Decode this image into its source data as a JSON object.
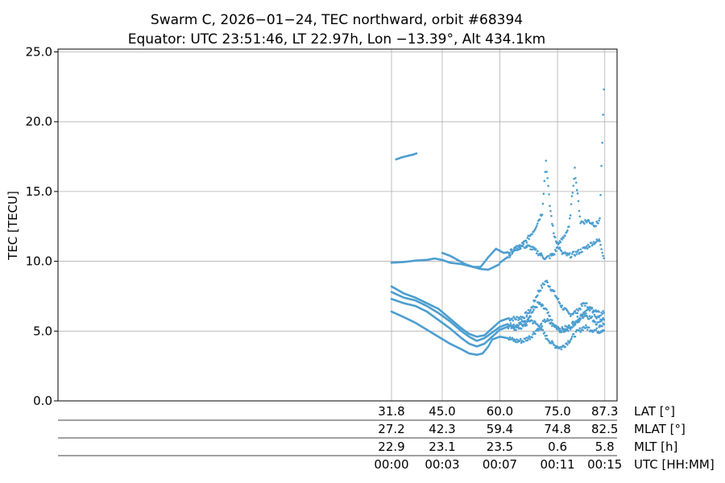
{
  "chart_data": {
    "type": "scatter",
    "title_line1": "Swarm C, 2026−01−24, TEC northward, orbit #68394",
    "title_line2": "Equator: UTC 23:51:46, LT 22.97h, Lon −13.39°, Alt 434.1km",
    "ylabel": "TEC [TECU]",
    "ylim": [
      0,
      25.2
    ],
    "yticks": [
      "0.0",
      "5.0",
      "10.0",
      "15.0",
      "20.0",
      "25.0"
    ],
    "grid": true,
    "color": "#4c9ed0",
    "x_axis_rows": [
      {
        "label": "LAT [°]",
        "ticks": [
          "31.8",
          "45.0",
          "60.0",
          "75.0",
          "87.3"
        ]
      },
      {
        "label": "MLAT [°]",
        "ticks": [
          "27.2",
          "42.3",
          "59.4",
          "74.8",
          "82.5"
        ]
      },
      {
        "label": "MLT [h]",
        "ticks": [
          "22.9",
          "23.1",
          "23.5",
          "0.6",
          "5.8"
        ]
      },
      {
        "label": "UTC [HH:MM]",
        "ticks": [
          "00:00",
          "00:03",
          "00:07",
          "00:11",
          "00:15"
        ]
      }
    ],
    "lat_ticks": [
      31.8,
      45.0,
      60.0,
      75.0,
      87.3
    ],
    "xlim_lat": [
      -55,
      90.5
    ],
    "series": [
      {
        "points": [
          [
            31.8,
            9.9
          ],
          [
            35,
            9.95
          ],
          [
            38,
            10.05
          ],
          [
            41,
            10.1
          ],
          [
            43,
            10.2
          ],
          [
            45,
            10.1
          ],
          [
            47,
            9.9
          ],
          [
            50,
            9.8
          ],
          [
            53,
            9.6
          ],
          [
            55,
            9.45
          ],
          [
            57,
            9.4
          ],
          [
            58.5,
            9.6
          ],
          [
            60,
            9.8
          ]
        ]
      },
      {
        "points": [
          [
            31.8,
            8.2
          ],
          [
            35,
            7.7
          ],
          [
            38,
            7.4
          ],
          [
            41,
            7.0
          ],
          [
            44,
            6.6
          ],
          [
            47,
            5.9
          ],
          [
            50,
            5.2
          ],
          [
            52,
            4.8
          ],
          [
            54,
            4.6
          ],
          [
            56,
            4.7
          ],
          [
            58,
            5.2
          ],
          [
            60,
            5.7
          ],
          [
            62,
            5.9
          ],
          [
            64,
            5.9
          ],
          [
            66,
            6.0
          ],
          [
            68,
            6.5
          ],
          [
            70,
            7.8
          ],
          [
            72,
            8.6
          ],
          [
            74,
            7.8
          ],
          [
            76,
            6.8
          ],
          [
            78,
            6.2
          ],
          [
            80,
            6.4
          ],
          [
            82,
            7.0
          ],
          [
            84,
            6.5
          ],
          [
            86,
            5.8
          ],
          [
            87.3,
            6.0
          ]
        ]
      },
      {
        "points": [
          [
            31.8,
            7.8
          ],
          [
            35,
            7.4
          ],
          [
            38,
            7.2
          ],
          [
            41,
            6.8
          ],
          [
            44,
            6.3
          ],
          [
            47,
            5.7
          ],
          [
            50,
            5.0
          ],
          [
            52,
            4.6
          ],
          [
            54,
            4.3
          ],
          [
            56,
            4.5
          ],
          [
            58,
            4.9
          ],
          [
            60,
            5.3
          ],
          [
            62,
            5.5
          ],
          [
            64,
            5.4
          ],
          [
            66,
            5.6
          ],
          [
            68,
            6.2
          ],
          [
            70,
            7.0
          ],
          [
            72,
            6.5
          ],
          [
            74,
            5.4
          ],
          [
            76,
            5.0
          ],
          [
            78,
            5.2
          ],
          [
            80,
            5.6
          ],
          [
            82,
            6.2
          ],
          [
            84,
            5.9
          ],
          [
            86,
            5.4
          ],
          [
            87.3,
            5.5
          ]
        ]
      },
      {
        "points": [
          [
            31.8,
            7.3
          ],
          [
            35,
            7.0
          ],
          [
            38,
            6.8
          ],
          [
            41,
            6.4
          ],
          [
            44,
            5.8
          ],
          [
            47,
            5.2
          ],
          [
            50,
            4.5
          ],
          [
            52,
            4.1
          ],
          [
            54,
            3.9
          ],
          [
            56,
            4.1
          ],
          [
            58,
            4.6
          ],
          [
            60,
            5.1
          ],
          [
            62,
            5.3
          ],
          [
            64,
            5.2
          ],
          [
            66,
            5.3
          ],
          [
            68,
            5.8
          ],
          [
            70,
            5.4
          ],
          [
            72,
            4.6
          ],
          [
            74,
            4.0
          ],
          [
            76,
            3.8
          ],
          [
            78,
            4.3
          ],
          [
            80,
            4.9
          ],
          [
            82,
            5.3
          ],
          [
            84,
            5.1
          ],
          [
            86,
            5.0
          ],
          [
            87.3,
            5.2
          ]
        ]
      },
      {
        "points": [
          [
            31.8,
            6.4
          ],
          [
            35,
            6.0
          ],
          [
            38,
            5.6
          ],
          [
            41,
            5.1
          ],
          [
            44,
            4.6
          ],
          [
            47,
            4.1
          ],
          [
            50,
            3.7
          ],
          [
            52,
            3.4
          ],
          [
            54,
            3.3
          ],
          [
            55.5,
            3.4
          ],
          [
            57,
            3.9
          ],
          [
            58,
            4.4
          ],
          [
            60,
            4.6
          ],
          [
            62,
            4.5
          ],
          [
            64,
            4.3
          ],
          [
            66,
            4.3
          ],
          [
            68,
            4.6
          ],
          [
            70,
            5.2
          ],
          [
            72,
            5.8
          ],
          [
            74,
            5.4
          ],
          [
            76,
            5.1
          ],
          [
            78,
            5.3
          ],
          [
            80,
            5.8
          ],
          [
            82,
            6.4
          ],
          [
            84,
            6.6
          ],
          [
            86,
            6.2
          ],
          [
            87.3,
            6.4
          ]
        ]
      },
      {
        "points": [
          [
            33,
            17.3
          ],
          [
            34.5,
            17.45
          ],
          [
            36,
            17.55
          ],
          [
            37.5,
            17.65
          ],
          [
            38.5,
            17.75
          ]
        ]
      },
      {
        "points": [
          [
            45,
            10.6
          ],
          [
            47,
            10.4
          ],
          [
            49,
            10.1
          ],
          [
            51,
            9.8
          ],
          [
            53,
            9.6
          ],
          [
            55,
            9.6
          ],
          [
            57,
            10.3
          ],
          [
            59,
            10.9
          ],
          [
            61,
            10.6
          ],
          [
            63,
            10.7
          ],
          [
            65,
            11.0
          ],
          [
            67,
            11.5
          ],
          [
            69,
            12.3
          ],
          [
            71,
            13.5
          ],
          [
            72,
            17.2
          ],
          [
            73,
            14.0
          ],
          [
            74,
            12.0
          ],
          [
            76,
            10.6
          ],
          [
            78,
            10.4
          ],
          [
            80,
            10.6
          ],
          [
            82,
            10.9
          ],
          [
            84,
            11.3
          ],
          [
            86,
            11.5
          ],
          [
            87.3,
            10.0
          ]
        ]
      },
      {
        "points": [
          [
            60,
            9.9
          ],
          [
            62,
            10.3
          ],
          [
            64,
            10.9
          ],
          [
            66,
            11.1
          ],
          [
            68,
            11.0
          ],
          [
            70,
            10.6
          ],
          [
            72,
            10.2
          ],
          [
            74,
            10.5
          ],
          [
            76,
            11.5
          ],
          [
            78,
            12.4
          ],
          [
            79.5,
            16.6
          ],
          [
            81,
            12.8
          ],
          [
            83,
            12.9
          ],
          [
            85,
            12.6
          ],
          [
            86,
            13.0
          ],
          [
            87.3,
            24.0
          ]
        ]
      }
    ]
  }
}
